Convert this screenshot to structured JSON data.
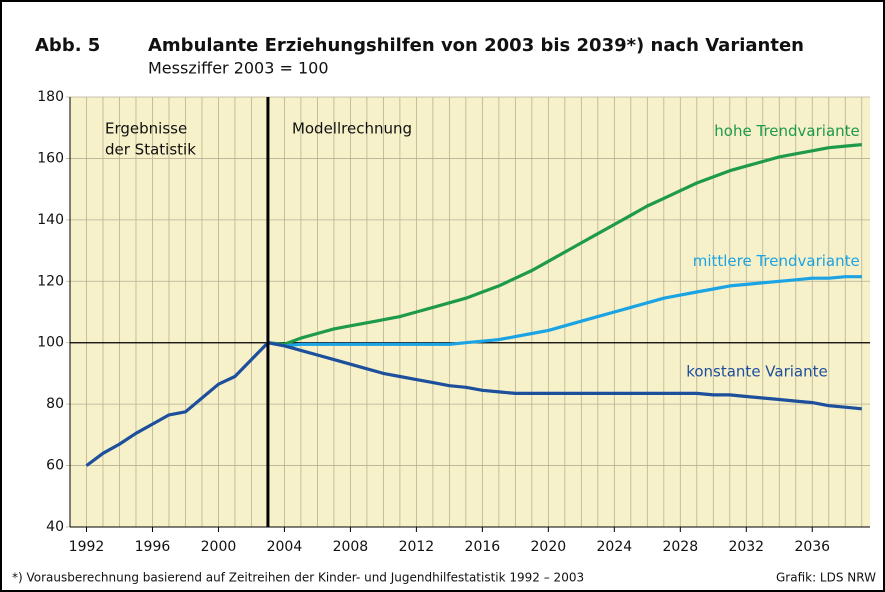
{
  "chart_data": {
    "type": "line",
    "figure_label": "Abb. 5",
    "title": "Ambulante Erziehungshilfen von 2003 bis 2039*) nach Varianten",
    "subtitle": "Messziffer 2003 = 100",
    "annotations": [
      "Ergebnisse",
      "der Statistik",
      "Modellrechnung"
    ],
    "footnote": "*) Vorausberechnung basierend auf Zeitreihen der Kinder- und Jugendhilfestatistik 1992 – 2003",
    "source": "Grafik: LDS NRW",
    "xlim": [
      1991,
      2039.5
    ],
    "ylim": [
      40,
      180
    ],
    "xticks": [
      1992,
      1996,
      2000,
      2004,
      2008,
      2012,
      2016,
      2020,
      2024,
      2028,
      2032,
      2036
    ],
    "yticks": [
      40,
      60,
      80,
      100,
      120,
      140,
      160,
      180
    ],
    "minor_grid_step": 1,
    "grid": true,
    "hline": 100,
    "vline": 2003,
    "series": [
      {
        "color": "#1d4f9c",
        "x": [
          1992,
          1993,
          1994,
          1995,
          1996,
          1997,
          1998,
          1999,
          2000,
          2001,
          2002,
          2003
        ],
        "values": [
          60,
          64,
          67,
          70.5,
          73.5,
          76.5,
          77.5,
          82,
          86.5,
          89,
          94.5,
          100
        ]
      },
      {
        "name": "hohe Trendvariante",
        "color": "#1e9a4a",
        "x": [
          2003,
          2004,
          2005,
          2006,
          2007,
          2008,
          2009,
          2010,
          2011,
          2012,
          2013,
          2014,
          2015,
          2016,
          2017,
          2018,
          2019,
          2020,
          2021,
          2022,
          2023,
          2024,
          2025,
          2026,
          2027,
          2028,
          2029,
          2030,
          2031,
          2032,
          2033,
          2034,
          2035,
          2036,
          2037,
          2038,
          2039
        ],
        "values": [
          100,
          99.5,
          101.5,
          103,
          104.5,
          105.5,
          106.5,
          107.5,
          108.5,
          110,
          111.5,
          113,
          114.5,
          116.5,
          118.5,
          121,
          123.5,
          126.5,
          129.5,
          132.5,
          135.5,
          138.5,
          141.5,
          144.5,
          147,
          149.5,
          152,
          154,
          156,
          157.5,
          159,
          160.5,
          161.5,
          162.5,
          163.5,
          164,
          164.5
        ]
      },
      {
        "name": "mittlere Trendvariante",
        "color": "#1ba3e3",
        "x": [
          2003,
          2004,
          2005,
          2006,
          2007,
          2008,
          2009,
          2010,
          2011,
          2012,
          2013,
          2014,
          2015,
          2016,
          2017,
          2018,
          2019,
          2020,
          2021,
          2022,
          2023,
          2024,
          2025,
          2026,
          2027,
          2028,
          2029,
          2030,
          2031,
          2032,
          2033,
          2034,
          2035,
          2036,
          2037,
          2038,
          2039
        ],
        "values": [
          100,
          99,
          99.5,
          99.5,
          99.5,
          99.5,
          99.5,
          99.5,
          99.5,
          99.5,
          99.5,
          99.5,
          100,
          100.5,
          101,
          102,
          103,
          104,
          105.5,
          107,
          108.5,
          110,
          111.5,
          113,
          114.5,
          115.5,
          116.5,
          117.5,
          118.5,
          119,
          119.5,
          120,
          120.5,
          121,
          121,
          121.5,
          121.5
        ]
      },
      {
        "name": "konstante Variante",
        "color": "#1d4f9c",
        "x": [
          2003,
          2004,
          2005,
          2006,
          2007,
          2008,
          2009,
          2010,
          2011,
          2012,
          2013,
          2014,
          2015,
          2016,
          2017,
          2018,
          2019,
          2020,
          2021,
          2022,
          2023,
          2024,
          2025,
          2026,
          2027,
          2028,
          2029,
          2030,
          2031,
          2032,
          2033,
          2034,
          2035,
          2036,
          2037,
          2038,
          2039
        ],
        "values": [
          100,
          99,
          97.5,
          96,
          94.5,
          93,
          91.5,
          90,
          89,
          88,
          87,
          86,
          85.5,
          84.5,
          84,
          83.5,
          83.5,
          83.5,
          83.5,
          83.5,
          83.5,
          83.5,
          83.5,
          83.5,
          83.5,
          83.5,
          83.5,
          83,
          83,
          82.5,
          82,
          81.5,
          81,
          80.5,
          79.5,
          79,
          78.5
        ]
      }
    ]
  }
}
